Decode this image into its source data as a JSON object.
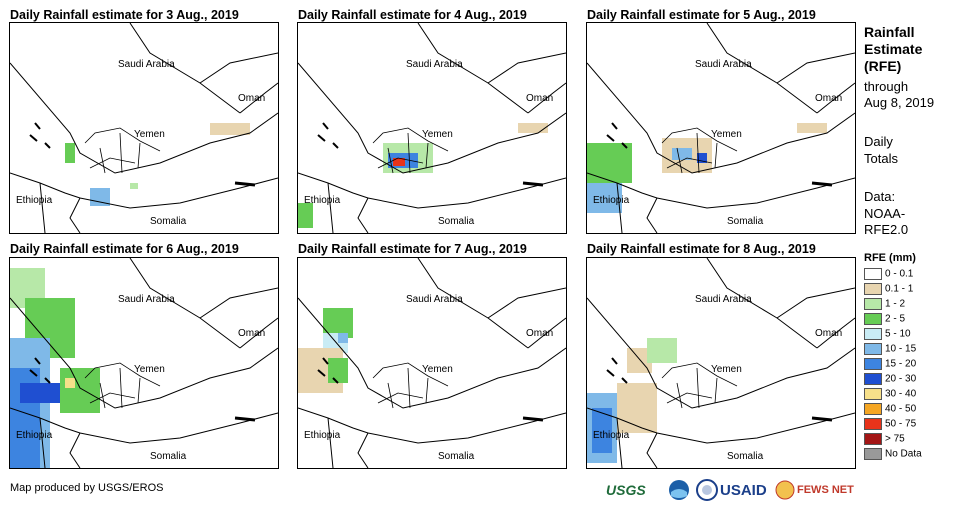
{
  "panels": [
    {
      "title": "Daily Rainfall estimate for 3 Aug., 2019"
    },
    {
      "title": "Daily Rainfall estimate for 4 Aug., 2019"
    },
    {
      "title": "Daily Rainfall estimate for 5 Aug., 2019"
    },
    {
      "title": "Daily Rainfall estimate for 6 Aug., 2019"
    },
    {
      "title": "Daily Rainfall estimate for 7 Aug., 2019"
    },
    {
      "title": "Daily Rainfall estimate for 8 Aug., 2019"
    }
  ],
  "countries": {
    "saudi": "Saudi Arabia",
    "oman": "Oman",
    "yemen": "Yemen",
    "ethiopia": "Ethiopia",
    "somalia": "Somalia"
  },
  "side": {
    "title_1": "Rainfall",
    "title_2": "Estimate",
    "title_3": "(RFE)",
    "through": "through",
    "date": "Aug 8, 2019",
    "daily": "Daily",
    "totals": "Totals",
    "data": "Data:",
    "noaa": "NOAA-",
    "rfe": "RFE2.0"
  },
  "legend": {
    "title": "RFE (mm)",
    "items": [
      {
        "label": "0 - 0.1",
        "color": "#ffffff"
      },
      {
        "label": "0.1 - 1",
        "color": "#e8d5b0"
      },
      {
        "label": "1 - 2",
        "color": "#b7e8a8"
      },
      {
        "label": "2 - 5",
        "color": "#66cc55"
      },
      {
        "label": "5 - 10",
        "color": "#c9ecf5"
      },
      {
        "label": "10 - 15",
        "color": "#7fb9e8"
      },
      {
        "label": "15 - 20",
        "color": "#3d84e0"
      },
      {
        "label": "20 - 30",
        "color": "#1f4fd1"
      },
      {
        "label": "30 - 40",
        "color": "#f7e08a"
      },
      {
        "label": "40 - 50",
        "color": "#f5a623"
      },
      {
        "label": "50 - 75",
        "color": "#e8331a"
      },
      {
        "label": "> 75",
        "color": "#a31515"
      },
      {
        "label": "No Data",
        "color": "#999999"
      }
    ]
  },
  "footer": {
    "credit": "Map produced by USGS/EROS"
  },
  "logos": {
    "usgs": "USGS",
    "usaid": "USAID",
    "fews": "FEWS NET"
  }
}
